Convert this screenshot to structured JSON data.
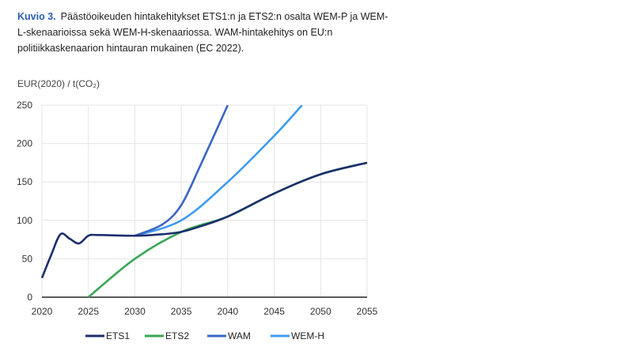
{
  "caption": {
    "label": "Kuvio 3.",
    "text": "Päästöoikeuden hintakehitykset ETS1:n ja ETS2:n osalta WEM-P ja WEM-L-skenaarioissa sekä WEM-H-skenaariossa. WAM-hintakehitys on EU:n politiikkaskenaarion hintauran mukainen (EC 2022)."
  },
  "chart_data": {
    "type": "line",
    "title": "",
    "xlabel": "",
    "ylabel": "EUR(2020) / t(CO₂)",
    "xlim": [
      2020,
      2055
    ],
    "ylim": [
      0,
      250
    ],
    "xticks": [
      2020,
      2025,
      2030,
      2035,
      2040,
      2045,
      2050,
      2055
    ],
    "yticks": [
      0,
      50,
      100,
      150,
      200,
      250
    ],
    "grid": true,
    "legend_position": "bottom",
    "series": [
      {
        "name": "ETS1",
        "color": "#1b2f6b",
        "x": [
          2020,
          2021,
          2022,
          2023,
          2024,
          2025,
          2026,
          2030,
          2033,
          2035,
          2037,
          2040,
          2045,
          2050,
          2055
        ],
        "y": [
          25,
          55,
          82,
          76,
          70,
          80,
          81,
          80,
          82,
          85,
          92,
          105,
          135,
          160,
          175
        ]
      },
      {
        "name": "ETS2",
        "color": "#3aa655",
        "x": [
          2025,
          2030,
          2035,
          2040,
          2045,
          2050,
          2055
        ],
        "y": [
          0,
          50,
          85,
          105,
          135,
          160,
          175
        ]
      },
      {
        "name": "WAM",
        "color": "#3a66c4",
        "x": [
          2030,
          2033,
          2035,
          2037,
          2040
        ],
        "y": [
          80,
          95,
          120,
          170,
          250
        ]
      },
      {
        "name": "WEM-H",
        "color": "#3f9bef",
        "x": [
          2030,
          2035,
          2040,
          2045,
          2048
        ],
        "y": [
          80,
          100,
          150,
          210,
          250
        ]
      }
    ]
  }
}
